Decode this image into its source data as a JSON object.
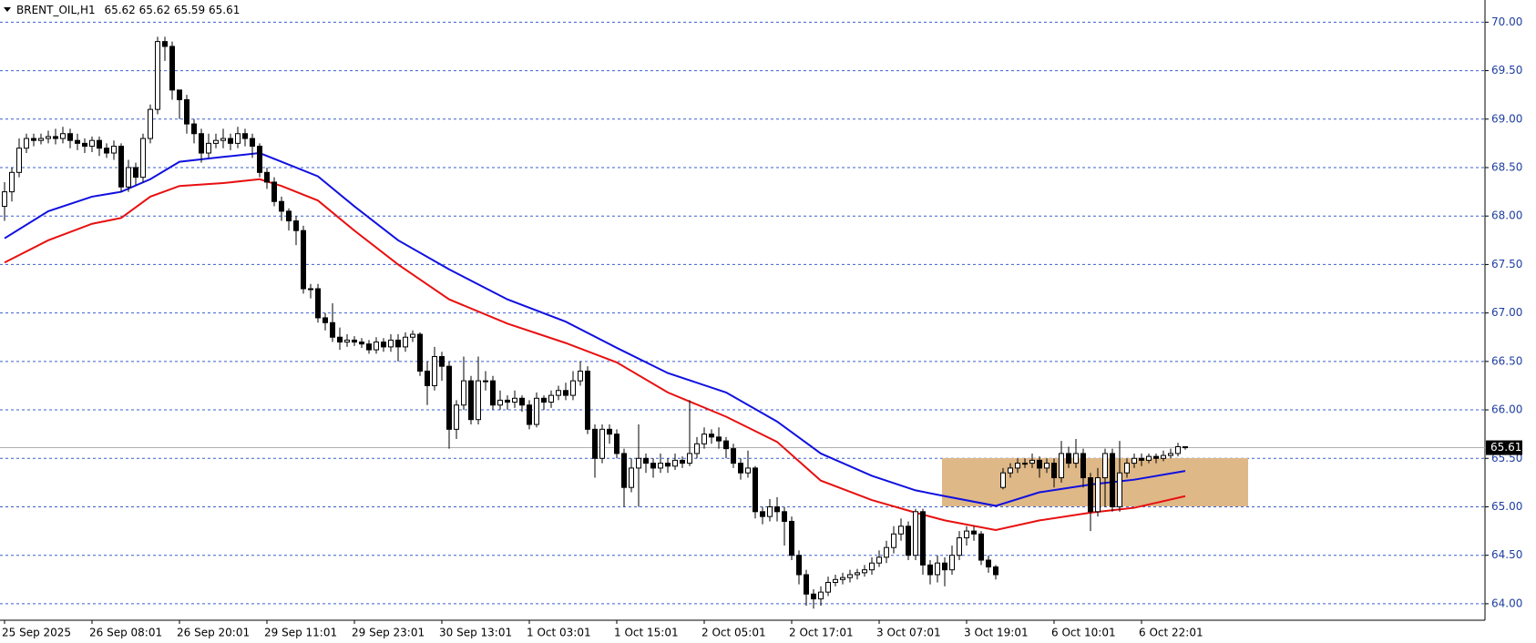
{
  "chart_data": {
    "type": "candlestick",
    "title": "BRENT_OIL,H1",
    "categories": [
      "25 Sep 2025",
      null,
      null,
      null,
      null,
      null,
      null,
      null,
      null,
      null,
      null,
      null,
      "26 Sep 08:01",
      null,
      null,
      null,
      null,
      null,
      null,
      null,
      null,
      null,
      null,
      null,
      "26 Sep 20:01",
      null,
      null,
      null,
      null,
      null,
      null,
      null,
      null,
      null,
      null,
      null,
      "29 Sep 11:01",
      null,
      null,
      null,
      null,
      null,
      null,
      null,
      null,
      null,
      null,
      null,
      "29 Sep 23:01",
      null,
      null,
      null,
      null,
      null,
      null,
      null,
      null,
      null,
      null,
      null,
      "30 Sep 13:01",
      null,
      null,
      null,
      null,
      null,
      null,
      null,
      null,
      null,
      null,
      null,
      "1 Oct 03:01",
      null,
      null,
      null,
      null,
      null,
      null,
      null,
      null,
      null,
      null,
      null,
      "1 Oct 15:01",
      null,
      null,
      null,
      null,
      null,
      null,
      null,
      null,
      null,
      null,
      null,
      "2 Oct 05:01",
      null,
      null,
      null,
      null,
      null,
      null,
      null,
      null,
      null,
      null,
      null,
      "2 Oct 17:01",
      null,
      null,
      null,
      null,
      null,
      null,
      null,
      null,
      null,
      null,
      null,
      "3 Oct 07:01",
      null,
      null,
      null,
      null,
      null,
      null,
      null,
      null,
      null,
      null,
      null,
      "3 Oct 19:01",
      null,
      null,
      null,
      null,
      null,
      null,
      null,
      null,
      null,
      null,
      null,
      "6 Oct 10:01",
      null,
      null,
      null,
      null,
      null,
      null,
      null,
      null,
      null,
      null,
      null,
      "6 Oct 22:01",
      null,
      null,
      null,
      null,
      null,
      null
    ],
    "open": [
      68.1,
      68.25,
      68.45,
      68.7,
      68.8,
      68.78,
      68.8,
      68.82,
      68.8,
      68.85,
      68.78,
      68.75,
      68.72,
      68.78,
      68.7,
      68.65,
      68.72,
      68.3,
      68.5,
      68.4,
      68.8,
      69.1,
      69.8,
      69.75,
      69.3,
      69.2,
      68.95,
      68.85,
      68.65,
      68.75,
      68.78,
      68.8,
      68.75,
      68.85,
      68.8,
      68.72,
      68.45,
      68.35,
      68.15,
      68.05,
      67.95,
      67.85,
      67.25,
      67.25,
      66.95,
      66.9,
      66.75,
      66.7,
      66.72,
      66.7,
      66.68,
      66.62,
      66.7,
      66.65,
      66.72,
      66.65,
      66.75,
      66.78,
      66.4,
      66.25,
      66.55,
      66.45,
      65.8,
      66.05,
      66.3,
      65.9,
      66.3,
      66.3,
      66.05,
      66.1,
      66.08,
      66.12,
      66.05,
      65.85,
      66.12,
      66.08,
      66.15,
      66.2,
      66.15,
      66.3,
      66.4,
      65.8,
      65.5,
      65.8,
      65.75,
      65.55,
      65.2,
      65.4,
      65.5,
      65.45,
      65.4,
      65.45,
      65.42,
      65.48,
      65.45,
      65.55,
      65.65,
      65.75,
      65.72,
      65.68,
      65.6,
      65.45,
      65.35,
      65.4,
      64.95,
      64.9,
      65.0,
      64.95,
      64.85,
      64.5,
      64.3,
      64.1,
      64.05,
      64.12,
      64.22,
      64.25,
      64.27,
      64.3,
      64.32,
      64.35,
      64.42,
      64.48,
      64.58,
      64.72,
      64.8,
      64.5,
      64.95,
      64.4,
      64.3,
      64.42,
      64.35,
      64.5,
      64.68,
      64.75,
      64.72,
      64.45,
      64.38,
      65.2,
      65.35,
      65.4,
      65.45,
      65.45,
      65.48,
      65.4,
      65.45,
      65.3,
      65.55,
      65.45,
      65.55,
      65.3,
      64.95,
      65.3,
      65.55,
      65.0,
      65.35,
      65.45,
      65.5,
      65.48,
      65.52,
      65.5,
      65.53,
      65.55,
      65.62
    ],
    "high": [
      68.35,
      68.5,
      68.8,
      68.85,
      68.85,
      68.85,
      68.88,
      68.9,
      68.92,
      68.9,
      68.85,
      68.8,
      68.82,
      68.82,
      68.75,
      68.78,
      68.75,
      68.58,
      68.55,
      68.85,
      69.15,
      69.85,
      69.85,
      69.8,
      69.3,
      69.25,
      69.0,
      68.9,
      68.85,
      68.85,
      68.9,
      68.85,
      68.92,
      68.9,
      68.85,
      68.75,
      68.5,
      68.4,
      68.2,
      68.08,
      68.0,
      67.9,
      67.3,
      67.3,
      67.0,
      67.1,
      66.85,
      66.78,
      66.76,
      66.74,
      66.72,
      66.75,
      66.74,
      66.78,
      66.78,
      66.8,
      66.82,
      66.8,
      66.5,
      66.65,
      66.6,
      66.5,
      66.1,
      66.55,
      66.35,
      66.55,
      66.4,
      66.35,
      66.2,
      66.15,
      66.2,
      66.15,
      66.1,
      66.18,
      66.15,
      66.2,
      66.25,
      66.28,
      66.4,
      66.5,
      66.45,
      65.85,
      65.85,
      65.85,
      65.8,
      65.6,
      65.5,
      65.85,
      65.55,
      65.5,
      65.55,
      65.5,
      65.55,
      65.52,
      66.1,
      65.72,
      65.82,
      65.8,
      65.82,
      65.72,
      65.65,
      65.5,
      65.58,
      65.42,
      65.0,
      65.08,
      65.1,
      65.0,
      64.9,
      64.55,
      64.35,
      64.15,
      64.18,
      64.28,
      64.3,
      64.32,
      64.35,
      64.36,
      64.4,
      64.48,
      64.55,
      64.65,
      64.8,
      64.88,
      64.85,
      64.98,
      64.98,
      64.45,
      64.5,
      64.48,
      64.6,
      64.75,
      64.8,
      64.8,
      64.75,
      64.5,
      64.4,
      65.4,
      65.45,
      65.5,
      65.5,
      65.55,
      65.52,
      65.5,
      65.5,
      65.68,
      65.62,
      65.7,
      65.6,
      65.35,
      65.4,
      65.6,
      65.6,
      65.68,
      65.5,
      65.55,
      65.55,
      65.55,
      65.55,
      65.58,
      65.6,
      65.66,
      65.62
    ],
    "low": [
      67.95,
      68.15,
      68.4,
      68.65,
      68.72,
      68.74,
      68.75,
      68.74,
      68.75,
      68.7,
      68.68,
      68.65,
      68.66,
      68.62,
      68.6,
      68.58,
      68.25,
      68.25,
      68.32,
      68.35,
      68.75,
      69.05,
      69.6,
      69.2,
      69.0,
      68.85,
      68.75,
      68.55,
      68.6,
      68.7,
      68.7,
      68.68,
      68.7,
      68.72,
      68.6,
      68.4,
      68.28,
      68.1,
      67.95,
      67.85,
      67.7,
      67.2,
      67.15,
      66.9,
      66.82,
      66.7,
      66.62,
      66.65,
      66.66,
      66.64,
      66.58,
      66.58,
      66.6,
      66.6,
      66.5,
      66.6,
      66.7,
      66.35,
      66.05,
      66.2,
      66.3,
      65.6,
      65.7,
      66.0,
      65.85,
      65.85,
      66.2,
      66.0,
      66.0,
      66.0,
      66.02,
      65.98,
      65.8,
      65.82,
      66.0,
      66.02,
      66.1,
      66.1,
      66.1,
      66.25,
      65.75,
      65.3,
      65.45,
      65.65,
      65.5,
      65.0,
      65.15,
      65.0,
      65.35,
      65.3,
      65.35,
      65.35,
      65.38,
      65.4,
      65.42,
      65.5,
      65.6,
      65.65,
      65.6,
      65.5,
      65.4,
      65.28,
      65.3,
      64.88,
      64.82,
      64.85,
      64.85,
      64.6,
      64.45,
      64.2,
      63.98,
      63.95,
      63.98,
      64.08,
      64.18,
      64.2,
      64.22,
      64.25,
      64.28,
      64.3,
      64.38,
      64.42,
      64.52,
      64.65,
      64.45,
      64.45,
      64.3,
      64.2,
      64.22,
      64.18,
      64.3,
      64.45,
      64.6,
      64.65,
      64.4,
      64.32,
      64.25,
      65.18,
      65.3,
      65.35,
      65.4,
      65.4,
      65.3,
      65.35,
      65.2,
      65.25,
      65.4,
      65.4,
      65.2,
      64.75,
      64.9,
      65.0,
      64.95,
      64.95,
      65.3,
      65.4,
      65.42,
      65.45,
      65.45,
      65.47,
      65.5,
      65.52,
      65.59
    ],
    "close": [
      68.25,
      68.45,
      68.7,
      68.8,
      68.78,
      68.8,
      68.82,
      68.8,
      68.85,
      68.78,
      68.75,
      68.72,
      68.78,
      68.7,
      68.65,
      68.72,
      68.3,
      68.5,
      68.4,
      68.8,
      69.1,
      69.8,
      69.75,
      69.3,
      69.2,
      68.95,
      68.85,
      68.65,
      68.75,
      68.78,
      68.8,
      68.75,
      68.85,
      68.8,
      68.72,
      68.45,
      68.35,
      68.15,
      68.05,
      67.95,
      67.85,
      67.25,
      67.25,
      66.95,
      66.9,
      66.75,
      66.7,
      66.72,
      66.7,
      66.68,
      66.62,
      66.7,
      66.65,
      66.72,
      66.65,
      66.75,
      66.78,
      66.4,
      66.25,
      66.55,
      66.45,
      65.8,
      66.05,
      66.3,
      65.9,
      66.3,
      66.3,
      66.05,
      66.1,
      66.08,
      66.12,
      66.05,
      65.85,
      66.12,
      66.08,
      66.15,
      66.2,
      66.15,
      66.3,
      66.4,
      65.8,
      65.5,
      65.8,
      65.75,
      65.55,
      65.2,
      65.4,
      65.5,
      65.45,
      65.4,
      65.45,
      65.42,
      65.48,
      65.45,
      65.55,
      65.65,
      65.75,
      65.72,
      65.68,
      65.6,
      65.45,
      65.35,
      65.4,
      64.95,
      64.9,
      65.0,
      64.95,
      64.85,
      64.5,
      64.3,
      64.1,
      64.05,
      64.12,
      64.22,
      64.25,
      64.27,
      64.3,
      64.32,
      64.35,
      64.42,
      64.48,
      64.58,
      64.72,
      64.8,
      64.5,
      64.95,
      64.4,
      64.3,
      64.42,
      64.35,
      64.5,
      64.68,
      64.75,
      64.72,
      64.45,
      64.38,
      64.3,
      65.35,
      65.4,
      65.45,
      65.45,
      65.48,
      65.4,
      65.45,
      65.3,
      65.55,
      65.45,
      65.55,
      65.3,
      64.95,
      65.3,
      65.55,
      65.0,
      65.35,
      65.45,
      65.5,
      65.48,
      65.52,
      65.5,
      65.53,
      65.55,
      65.62,
      65.61
    ],
    "lines": [
      {
        "color": "#1010e0",
        "x": [
          0,
          6,
          12,
          16,
          20,
          24,
          30,
          35,
          38,
          43,
          48,
          54,
          61,
          69,
          77,
          84,
          91,
          99,
          106,
          112,
          119,
          125,
          129,
          136,
          142,
          149,
          155,
          162
        ],
        "values": [
          67.77,
          68.05,
          68.2,
          68.25,
          68.38,
          68.56,
          68.61,
          68.65,
          68.56,
          68.41,
          68.1,
          67.75,
          67.45,
          67.14,
          66.91,
          66.64,
          66.38,
          66.18,
          65.88,
          65.55,
          65.32,
          65.17,
          65.11,
          65.01,
          65.15,
          65.23,
          65.28,
          65.37
        ]
      },
      {
        "color": "#e81010",
        "x": [
          0,
          6,
          12,
          16,
          20,
          24,
          30,
          35,
          38,
          43,
          48,
          54,
          61,
          69,
          77,
          84,
          91,
          99,
          106,
          112,
          119,
          125,
          129,
          136,
          142,
          149,
          155,
          162
        ],
        "values": [
          67.52,
          67.75,
          67.92,
          67.98,
          68.2,
          68.31,
          68.34,
          68.38,
          68.31,
          68.16,
          67.85,
          67.5,
          67.14,
          66.89,
          66.69,
          66.49,
          66.18,
          65.93,
          65.67,
          65.27,
          65.07,
          64.94,
          64.86,
          64.76,
          64.86,
          64.94,
          64.99,
          65.11
        ]
      }
    ],
    "ylim": [
      63.83,
      70.21
    ],
    "yticks": [
      {
        "value": 64,
        "label": "64.00"
      },
      {
        "value": 64.5,
        "label": "64.50"
      },
      {
        "value": 65,
        "label": "65.00"
      },
      {
        "value": 65.5,
        "label": "65.50"
      },
      {
        "value": 66,
        "label": "66.00"
      },
      {
        "value": 66.5,
        "label": "66.50"
      },
      {
        "value": 67,
        "label": "67.00"
      },
      {
        "value": 67.5,
        "label": "67.50"
      },
      {
        "value": 68,
        "label": "68.00"
      },
      {
        "value": 68.5,
        "label": "68.50"
      },
      {
        "value": 69,
        "label": "69.00"
      },
      {
        "value": 69.5,
        "label": "69.50"
      },
      {
        "value": 70,
        "label": "70.00"
      }
    ],
    "grid": true
  }
}
